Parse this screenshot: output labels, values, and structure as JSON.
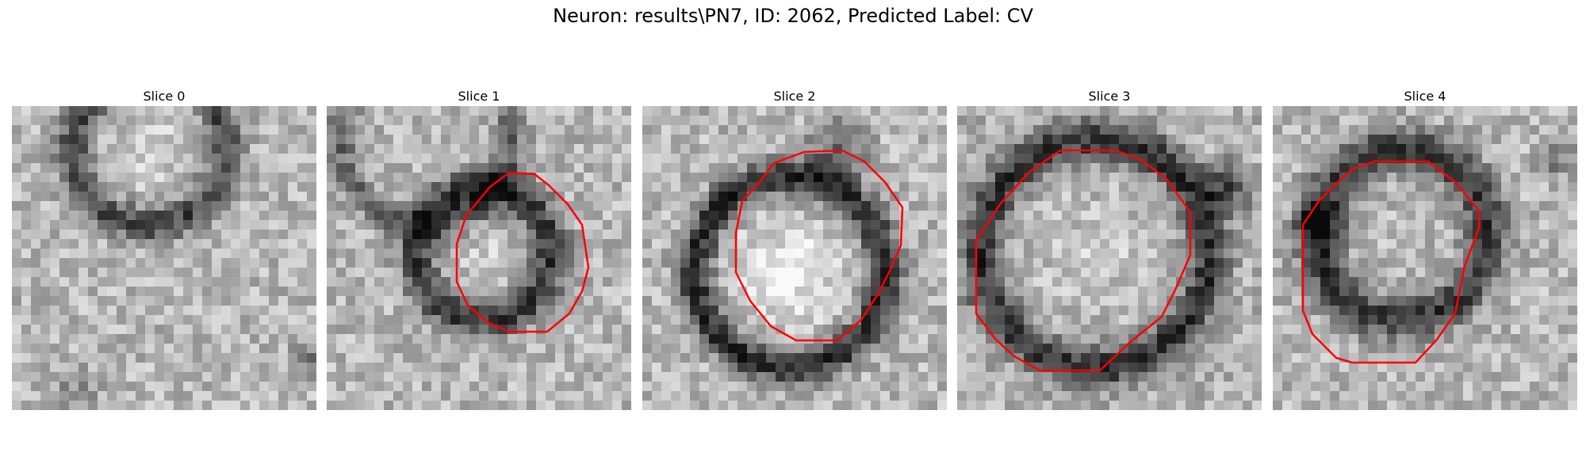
{
  "figure": {
    "title": "Neuron: results\\PN7, ID: 2062, Predicted Label: CV"
  },
  "panels": [
    {
      "title": "Slice 0",
      "has_contour": false
    },
    {
      "title": "Slice 1",
      "has_contour": true
    },
    {
      "title": "Slice 2",
      "has_contour": true
    },
    {
      "title": "Slice 3",
      "has_contour": true
    },
    {
      "title": "Slice 4",
      "has_contour": true
    }
  ],
  "colors": {
    "contour": "#ff0000",
    "background": "#ffffff"
  }
}
